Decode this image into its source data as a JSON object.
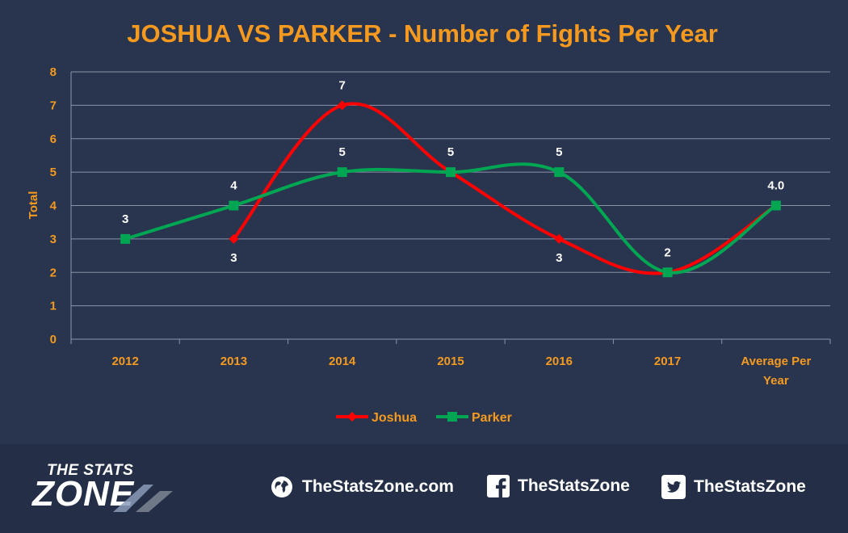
{
  "chart_data": {
    "type": "line",
    "title": "JOSHUA VS PARKER - Number of Fights Per Year",
    "ylabel": "Total",
    "xlabel": "",
    "categories": [
      "2012",
      "2013",
      "2014",
      "2015",
      "2016",
      "2017",
      "Average Per Year"
    ],
    "ylim": [
      0,
      8
    ],
    "yticks": [
      0,
      1,
      2,
      3,
      4,
      5,
      6,
      7,
      8
    ],
    "grid": true,
    "smooth": true,
    "legend": "bottom",
    "series": [
      {
        "name": "Joshua",
        "color": "#ff0000",
        "marker": "diamond",
        "values": [
          null,
          3,
          7,
          5,
          3,
          2,
          4.0
        ],
        "labels": [
          "",
          "3",
          "7",
          "",
          "3",
          "",
          ""
        ]
      },
      {
        "name": "Parker",
        "color": "#00a651",
        "marker": "square",
        "values": [
          3,
          4,
          5,
          5,
          5,
          2,
          4.0
        ],
        "labels": [
          "3",
          "4",
          "5",
          "5",
          "5",
          "2",
          "4.0"
        ]
      }
    ]
  },
  "footer": {
    "logo_top": "THE STATS",
    "logo_bottom": "ZONE",
    "website": "TheStatsZone.com",
    "facebook": "TheStatsZone",
    "twitter": "TheStatsZone",
    "globe_icon": "globe-icon",
    "facebook_icon": "facebook-icon",
    "twitter_icon": "twitter-icon"
  }
}
